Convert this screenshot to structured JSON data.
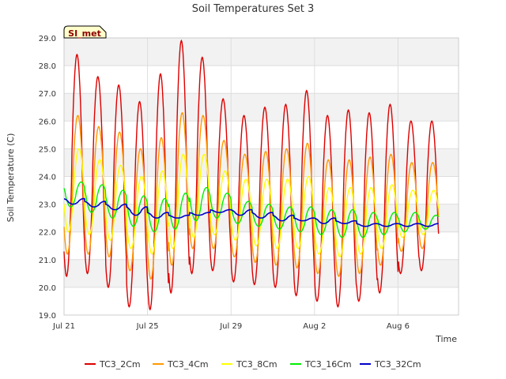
{
  "chart_data": {
    "type": "line",
    "title": "Soil Temperatures Set 3",
    "xlabel": "Time",
    "ylabel": "Soil Temperature (C)",
    "badge": "SI_met",
    "ylim": [
      19.0,
      29.0
    ],
    "xlim": [
      0,
      18.9
    ],
    "y_ticks": [
      "19.0",
      "20.0",
      "21.0",
      "22.0",
      "23.0",
      "24.0",
      "25.0",
      "26.0",
      "27.0",
      "28.0",
      "29.0"
    ],
    "x_ticks": [
      {
        "label": "Jul 21",
        "day": 0
      },
      {
        "label": "Jul 25",
        "day": 4
      },
      {
        "label": "Jul 29",
        "day": 8
      },
      {
        "label": "Aug 2",
        "day": 12
      },
      {
        "label": "Aug 6",
        "day": 16
      }
    ],
    "grid": true,
    "legend_position": "bottom",
    "series": [
      {
        "name": "TC3_2Cm",
        "color": "#dd0000",
        "min": [
          20.4,
          20.5,
          20.0,
          19.3,
          19.2,
          19.8,
          20.5,
          20.6,
          20.2,
          20.1,
          20.0,
          19.7,
          19.5,
          19.3,
          19.5,
          19.8,
          20.5,
          20.6
        ],
        "max": [
          28.4,
          27.6,
          27.3,
          26.7,
          27.7,
          28.9,
          28.3,
          26.8,
          26.2,
          26.5,
          26.6,
          27.1,
          26.2,
          26.4,
          26.3,
          26.6,
          26.0,
          26.0
        ]
      },
      {
        "name": "TC3_4Cm",
        "color": "#ff9900",
        "min": [
          21.2,
          21.2,
          21.1,
          20.6,
          20.3,
          20.8,
          21.4,
          21.4,
          21.1,
          20.9,
          20.8,
          20.7,
          20.5,
          20.4,
          20.5,
          20.8,
          21.3,
          21.4
        ],
        "max": [
          26.2,
          25.8,
          25.6,
          25.0,
          25.4,
          26.3,
          26.2,
          25.3,
          24.8,
          24.9,
          25.0,
          25.2,
          24.6,
          24.6,
          24.7,
          24.8,
          24.5,
          24.5
        ]
      },
      {
        "name": "TC3_8Cm",
        "color": "#ffff00",
        "min": [
          22.0,
          21.9,
          21.7,
          21.4,
          21.2,
          21.4,
          21.8,
          21.9,
          21.7,
          21.5,
          21.4,
          21.4,
          21.2,
          21.1,
          21.2,
          21.4,
          21.8,
          21.9
        ],
        "max": [
          25.0,
          24.6,
          24.4,
          24.0,
          24.2,
          24.8,
          24.8,
          24.2,
          23.9,
          23.9,
          23.9,
          24.0,
          23.6,
          23.6,
          23.6,
          23.7,
          23.5,
          23.5
        ]
      },
      {
        "name": "TC3_16Cm",
        "color": "#00ee00",
        "min": [
          22.9,
          22.7,
          22.5,
          22.2,
          22.0,
          22.1,
          22.4,
          22.5,
          22.3,
          22.2,
          22.1,
          22.0,
          21.9,
          21.8,
          21.8,
          21.9,
          22.0,
          22.1
        ],
        "max": [
          23.8,
          23.7,
          23.5,
          23.3,
          23.2,
          23.4,
          23.6,
          23.4,
          23.1,
          23.0,
          22.9,
          22.9,
          22.8,
          22.8,
          22.7,
          22.7,
          22.7,
          22.6
        ]
      },
      {
        "name": "TC3_32Cm",
        "color": "#0000cc",
        "min": [
          23.0,
          22.9,
          22.8,
          22.6,
          22.5,
          22.5,
          22.6,
          22.7,
          22.6,
          22.5,
          22.4,
          22.4,
          22.3,
          22.3,
          22.2,
          22.2,
          22.2,
          22.2
        ],
        "max": [
          23.2,
          23.1,
          23.0,
          22.9,
          22.7,
          22.6,
          22.7,
          22.8,
          22.8,
          22.7,
          22.6,
          22.5,
          22.5,
          22.4,
          22.3,
          22.3,
          22.3,
          22.3
        ]
      }
    ]
  }
}
